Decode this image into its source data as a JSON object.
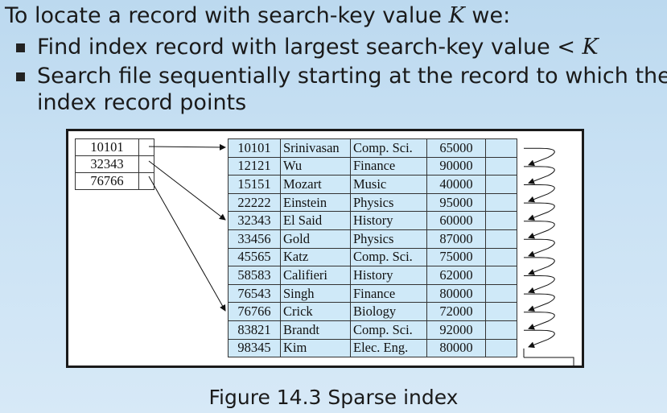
{
  "intro": {
    "text": "To locate a record with search-key value ",
    "var": "K",
    "suffix": " we:"
  },
  "bullets": [
    {
      "text": "Find index record with largest search-key value ",
      "op": "<",
      "var": "K"
    },
    {
      "line1": "Search file sequentially starting at the record to which the",
      "line2": "index record points"
    }
  ],
  "index_records": [
    {
      "key": "10101"
    },
    {
      "key": "32343"
    },
    {
      "key": "76766"
    }
  ],
  "data_records": [
    {
      "id": "10101",
      "name": "Srinivasan",
      "dept": "Comp. Sci.",
      "salary": "65000"
    },
    {
      "id": "12121",
      "name": "Wu",
      "dept": "Finance",
      "salary": "90000"
    },
    {
      "id": "15151",
      "name": "Mozart",
      "dept": "Music",
      "salary": "40000"
    },
    {
      "id": "22222",
      "name": "Einstein",
      "dept": "Physics",
      "salary": "95000"
    },
    {
      "id": "32343",
      "name": "El Said",
      "dept": "History",
      "salary": "60000"
    },
    {
      "id": "33456",
      "name": "Gold",
      "dept": "Physics",
      "salary": "87000"
    },
    {
      "id": "45565",
      "name": "Katz",
      "dept": "Comp. Sci.",
      "salary": "75000"
    },
    {
      "id": "58583",
      "name": "Califieri",
      "dept": "History",
      "salary": "62000"
    },
    {
      "id": "76543",
      "name": "Singh",
      "dept": "Finance",
      "salary": "80000"
    },
    {
      "id": "76766",
      "name": "Crick",
      "dept": "Biology",
      "salary": "72000"
    },
    {
      "id": "83821",
      "name": "Brandt",
      "dept": "Comp. Sci.",
      "salary": "92000"
    },
    {
      "id": "98345",
      "name": "Kim",
      "dept": "Elec. Eng.",
      "salary": "80000"
    }
  ],
  "caption": "Figure 14.3 Sparse index",
  "colors": {
    "background": "#c7e0f3",
    "record_fill": "#cfe9f8",
    "frame": "#1a1a1a"
  }
}
